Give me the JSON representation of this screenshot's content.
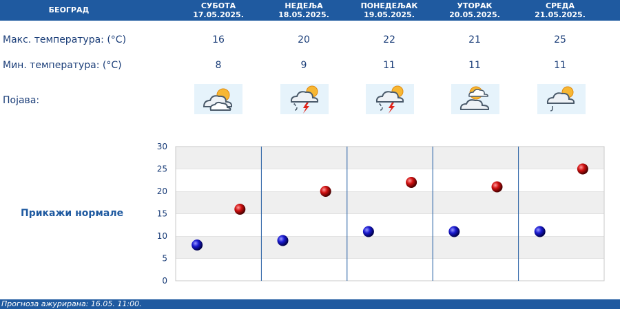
{
  "header": {
    "city": "БЕОГРАД",
    "days": [
      {
        "name": "СУБОТА",
        "date": "17.05.2025."
      },
      {
        "name": "НЕДЕЉА",
        "date": "18.05.2025."
      },
      {
        "name": "ПОНЕДЕЉАК",
        "date": "19.05.2025."
      },
      {
        "name": "УТОРАК",
        "date": "20.05.2025."
      },
      {
        "name": "СРЕДА",
        "date": "21.05.2025."
      }
    ]
  },
  "rows": {
    "max_label": "Макс. температура: (°C)",
    "min_label": "Мин. температура: (°C)",
    "phenomenon_label": "Појава:"
  },
  "max_values": [
    "16",
    "20",
    "22",
    "21",
    "25"
  ],
  "min_values": [
    "8",
    "9",
    "11",
    "11",
    "11"
  ],
  "icons": [
    "partly-cloudy-icon",
    "thunderstorm-rain-icon",
    "thunderstorm-rain-icon",
    "partly-cloudy-sunny-icon",
    "partly-cloudy-showers-icon"
  ],
  "normals_link": "Прикажи нормале",
  "chart_data": {
    "type": "scatter",
    "categories": [
      "17.05.2025.",
      "18.05.2025.",
      "19.05.2025.",
      "20.05.2025.",
      "21.05.2025."
    ],
    "series": [
      {
        "values": [
          8,
          9,
          11,
          11,
          11
        ],
        "color": "#1a1ad0"
      },
      {
        "values": [
          16,
          20,
          22,
          21,
          25
        ],
        "color": "#d01010"
      }
    ],
    "ylim": [
      0,
      30
    ],
    "yticks": [
      "0",
      "5",
      "10",
      "15",
      "20",
      "25",
      "30"
    ],
    "grid": true
  },
  "footer": "Прогноза ажурирана:  16.05. 11:00."
}
